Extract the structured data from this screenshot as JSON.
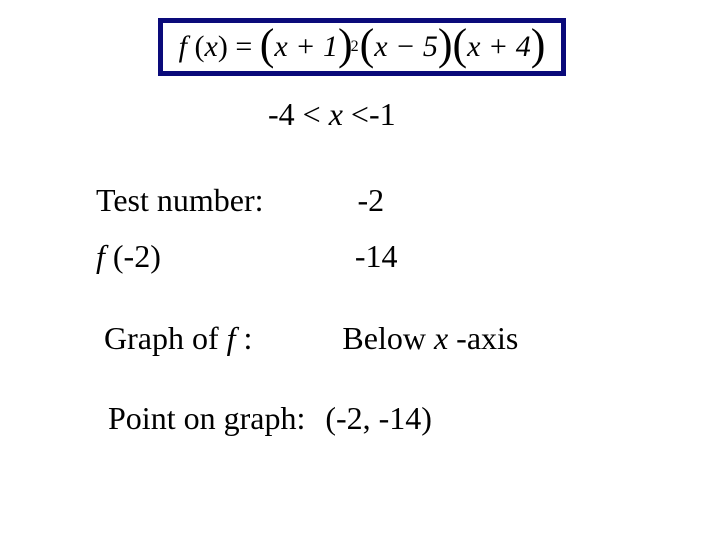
{
  "formula": {
    "fn_name": "f",
    "var": "x",
    "term1_inner": "x + 1",
    "term1_exp": "2",
    "term2_inner": "x − 5",
    "term3_inner": "x + 4",
    "border_color": "#0a0a7a"
  },
  "interval": {
    "left": "-4 < ",
    "var": "x",
    "right": " <-1"
  },
  "rows": {
    "test_number": {
      "label": "Test number:",
      "value": "-2"
    },
    "f_eval": {
      "label_prefix": "f ",
      "label_suffix": "(-2)",
      "value": "-14"
    },
    "graph": {
      "label_prefix": "Graph of ",
      "label_f": "f",
      "label_suffix": ":",
      "value_prefix": "Below ",
      "value_x": "x",
      "value_suffix": "-axis"
    },
    "point": {
      "label": "Point on graph:",
      "value": "(-2, -14)"
    }
  },
  "style": {
    "background_color": "#ffffff",
    "text_color": "#000000",
    "font_family": "Times New Roman",
    "base_fontsize": 32,
    "formula_fontsize": 30
  }
}
